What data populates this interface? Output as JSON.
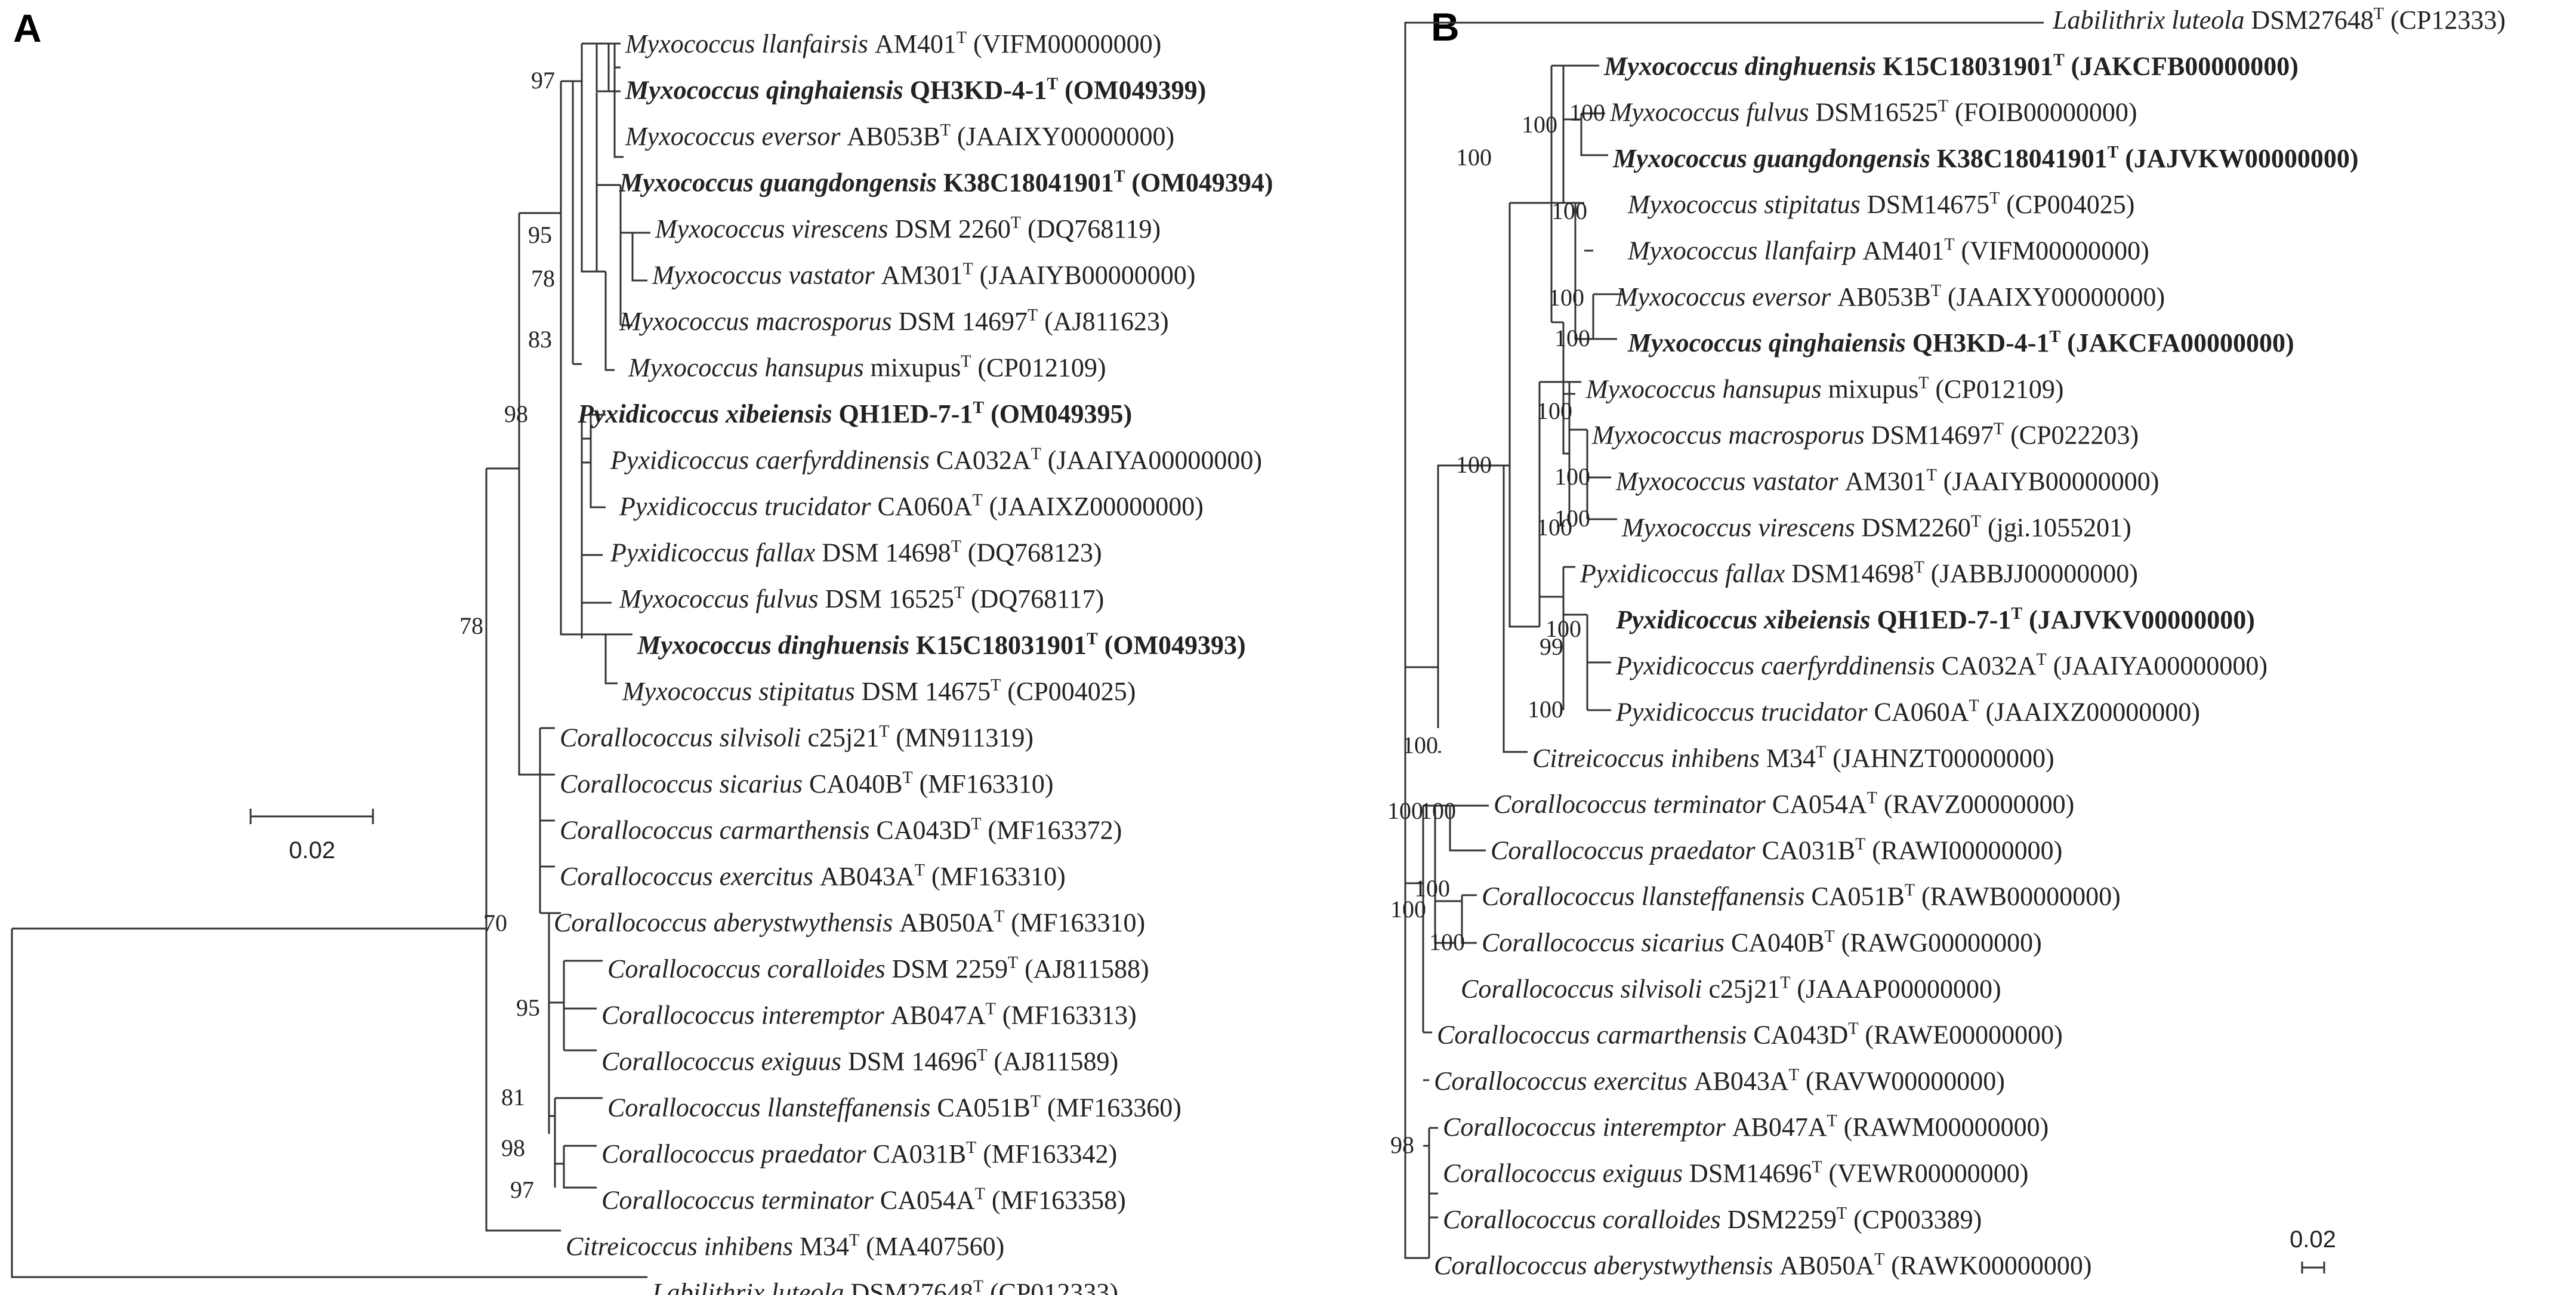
{
  "panels": {
    "a": "A",
    "b": "B"
  },
  "scale": {
    "a": "0.02",
    "b": "0.02"
  },
  "tree_a": {
    "leaves": [
      {
        "genus": "Myxococcus",
        "species": "llanfairsis",
        "strain": "AM401",
        "acc": "(VIFM00000000)",
        "bold": false
      },
      {
        "genus": "Myxococcus",
        "species": "qinghaiensis",
        "strain": "QH3KD-4-1",
        "acc": "(OM049399)",
        "bold": true
      },
      {
        "genus": "Myxococcus",
        "species": "eversor",
        "strain": "AB053B",
        "acc": "(JAAIXY00000000)",
        "bold": false
      },
      {
        "genus": "Myxococcus",
        "species": "guangdongensis",
        "strain": "K38C18041901",
        "acc": "(OM049394)",
        "bold": true
      },
      {
        "genus": "Myxococcus",
        "species": "virescens",
        "strain": "DSM 2260",
        "acc": "(DQ768119)",
        "bold": false
      },
      {
        "genus": "Myxococcus",
        "species": "vastator",
        "strain": "AM301",
        "acc": "(JAAIYB00000000)",
        "bold": false
      },
      {
        "genus": "Myxococcus",
        "species": "macrosporus",
        "strain": "DSM 14697",
        "acc": "(AJ811623)",
        "bold": false
      },
      {
        "genus": "Myxococcus",
        "species": "hansupus",
        "strain": "mixupus",
        "acc": "(CP012109)",
        "bold": false
      },
      {
        "genus": "Pyxidicoccus",
        "species": "xibeiensis",
        "strain": "QH1ED-7-1",
        "acc": "(OM049395)",
        "bold": true
      },
      {
        "genus": "Pyxidicoccus",
        "species": "caerfyrddinensis",
        "strain": "CA032A",
        "acc": "(JAAIYA00000000)",
        "bold": false
      },
      {
        "genus": "Pyxidicoccus",
        "species": "trucidator",
        "strain": "CA060A",
        "acc": "(JAAIXZ00000000)",
        "bold": false
      },
      {
        "genus": "Pyxidicoccus",
        "species": "fallax",
        "strain": "DSM 14698",
        "acc": "(DQ768123)",
        "bold": false
      },
      {
        "genus": "Myxococcus",
        "species": "fulvus",
        "strain": "DSM 16525",
        "acc": "(DQ768117)",
        "bold": false
      },
      {
        "genus": "Myxococcus",
        "species": "dinghuensis",
        "strain": "K15C18031901",
        "acc": "(OM049393)",
        "bold": true
      },
      {
        "genus": "Myxococcus",
        "species": "stipitatus",
        "strain": "DSM 14675",
        "acc": "(CP004025)",
        "bold": false
      },
      {
        "genus": "Corallococcus",
        "species": "silvisoli",
        "strain": "c25j21",
        "acc": "(MN911319)",
        "bold": false
      },
      {
        "genus": "Corallococcus",
        "species": "sicarius",
        "strain": "CA040B",
        "acc": "(MF163310)",
        "bold": false
      },
      {
        "genus": "Corallococcus",
        "species": "carmarthensis",
        "strain": "CA043D",
        "acc": "(MF163372)",
        "bold": false
      },
      {
        "genus": "Corallococcus",
        "species": "exercitus",
        "strain": "AB043A",
        "acc": "(MF163310)",
        "bold": false
      },
      {
        "genus": "Corallococcus",
        "species": "aberystwythensis",
        "strain": "AB050A",
        "acc": "(MF163310)",
        "bold": false
      },
      {
        "genus": "Corallococcus",
        "species": "coralloides",
        "strain": "DSM 2259",
        "acc": "(AJ811588)",
        "bold": false
      },
      {
        "genus": "Corallococcus",
        "species": "interemptor",
        "strain": "AB047A",
        "acc": "(MF163313)",
        "bold": false
      },
      {
        "genus": "Corallococcus",
        "species": "exiguus",
        "strain": "DSM 14696",
        "acc": "(AJ811589)",
        "bold": false
      },
      {
        "genus": "Corallococcus",
        "species": "llansteffanensis",
        "strain": "CA051B",
        "acc": "(MF163360)",
        "bold": false
      },
      {
        "genus": "Corallococcus",
        "species": "praedator",
        "strain": "CA031B",
        "acc": "(MF163342)",
        "bold": false
      },
      {
        "genus": "Corallococcus",
        "species": "terminator",
        "strain": "CA054A",
        "acc": "(MF163358)",
        "bold": false
      },
      {
        "genus": "Citreicoccus",
        "species": "inhibens",
        "strain": "M34",
        "acc": "(MA407560)",
        "bold": false
      },
      {
        "genus": "Labilithrix",
        "species": "luteola",
        "strain": "DSM27648",
        "acc": "(CP012333)",
        "bold": false
      }
    ],
    "bootstraps": [
      "97",
      "95",
      "78",
      "83",
      "98",
      "78",
      "70",
      "95",
      "81",
      "98",
      "97"
    ]
  },
  "tree_b": {
    "leaves": [
      {
        "genus": "Labilithrix",
        "species": "luteola",
        "strain": "DSM27648",
        "acc": "(CP12333)",
        "bold": false
      },
      {
        "genus": "Myxococcus",
        "species": "dinghuensis",
        "strain": "K15C18031901",
        "acc": "(JAKCFB00000000)",
        "bold": true
      },
      {
        "genus": "Myxococcus",
        "species": "fulvus",
        "strain": "DSM16525",
        "acc": "(FOIB00000000)",
        "bold": false
      },
      {
        "genus": "Myxococcus",
        "species": "guangdongensis",
        "strain": "K38C18041901",
        "acc": "(JAJVKW00000000)",
        "bold": true
      },
      {
        "genus": "Myxococcus",
        "species": "stipitatus",
        "strain": "DSM14675",
        "acc": "(CP004025)",
        "bold": false
      },
      {
        "genus": "Myxococcus",
        "species": "llanfairp",
        "strain": "AM401",
        "acc": "(VIFM00000000)",
        "bold": false
      },
      {
        "genus": "Myxococcus",
        "species": "eversor",
        "strain": "AB053B",
        "acc": "(JAAIXY00000000)",
        "bold": false
      },
      {
        "genus": "Myxococcus",
        "species": "qinghaiensis",
        "strain": "QH3KD-4-1",
        "acc": "(JAKCFA00000000)",
        "bold": true
      },
      {
        "genus": "Myxococcus",
        "species": "hansupus",
        "strain": "mixupus",
        "acc": "(CP012109)",
        "bold": false
      },
      {
        "genus": "Myxococcus",
        "species": "macrosporus",
        "strain": "DSM14697",
        "acc": "(CP022203)",
        "bold": false
      },
      {
        "genus": "Myxococcus",
        "species": "vastator",
        "strain": "AM301",
        "acc": "(JAAIYB00000000)",
        "bold": false
      },
      {
        "genus": "Myxococcus",
        "species": "virescens",
        "strain": "DSM2260",
        "acc": "(jgi.1055201)",
        "bold": false
      },
      {
        "genus": "Pyxidicoccus",
        "species": "fallax",
        "strain": "DSM14698",
        "acc": "(JABBJJ00000000)",
        "bold": false
      },
      {
        "genus": "Pyxidicoccus",
        "species": "xibeiensis",
        "strain": "QH1ED-7-1",
        "acc": "(JAJVKV00000000)",
        "bold": true
      },
      {
        "genus": "Pyxidicoccus",
        "species": "caerfyrddinensis",
        "strain": "CA032A",
        "acc": "(JAAIYA00000000)",
        "bold": false
      },
      {
        "genus": "Pyxidicoccus",
        "species": "trucidator",
        "strain": "CA060A",
        "acc": "(JAAIXZ00000000)",
        "bold": false
      },
      {
        "genus": "Citreicoccus",
        "species": "inhibens",
        "strain": "M34",
        "acc": "(JAHNZT00000000)",
        "bold": false
      },
      {
        "genus": "Corallococcus",
        "species": "terminator",
        "strain": "CA054A",
        "acc": "(RAVZ00000000)",
        "bold": false
      },
      {
        "genus": "Corallococcus",
        "species": "praedator",
        "strain": "CA031B",
        "acc": "(RAWI00000000)",
        "bold": false
      },
      {
        "genus": "Corallococcus",
        "species": "llansteffanensis",
        "strain": "CA051B",
        "acc": "(RAWB00000000)",
        "bold": false
      },
      {
        "genus": "Corallococcus",
        "species": "sicarius",
        "strain": "CA040B",
        "acc": "(RAWG00000000)",
        "bold": false
      },
      {
        "genus": "Corallococcus",
        "species": "silvisoli",
        "strain": "c25j21",
        "acc": "(JAAAP00000000)",
        "bold": false
      },
      {
        "genus": "Corallococcus",
        "species": "carmarthensis",
        "strain": "CA043D",
        "acc": "(RAWE00000000)",
        "bold": false
      },
      {
        "genus": "Corallococcus",
        "species": "exercitus",
        "strain": "AB043A",
        "acc": "(RAVW00000000)",
        "bold": false
      },
      {
        "genus": "Corallococcus",
        "species": "interemptor",
        "strain": "AB047A",
        "acc": "(RAWM00000000)",
        "bold": false
      },
      {
        "genus": "Corallococcus",
        "species": "exiguus",
        "strain": "DSM14696",
        "acc": "(VEWR00000000)",
        "bold": false
      },
      {
        "genus": "Corallococcus",
        "species": "coralloides",
        "strain": "DSM2259",
        "acc": "(CP003389)",
        "bold": false
      },
      {
        "genus": "Corallococcus",
        "species": "aberystwythensis",
        "strain": "AB050A",
        "acc": "(RAWK00000000)",
        "bold": false
      }
    ],
    "bootstraps": [
      "100",
      "100",
      "100",
      "100",
      "100",
      "100",
      "100",
      "100",
      "100",
      "100",
      "100",
      "99",
      "100",
      "100",
      "100",
      "100",
      "100",
      "100",
      "100",
      "100",
      "98"
    ]
  }
}
